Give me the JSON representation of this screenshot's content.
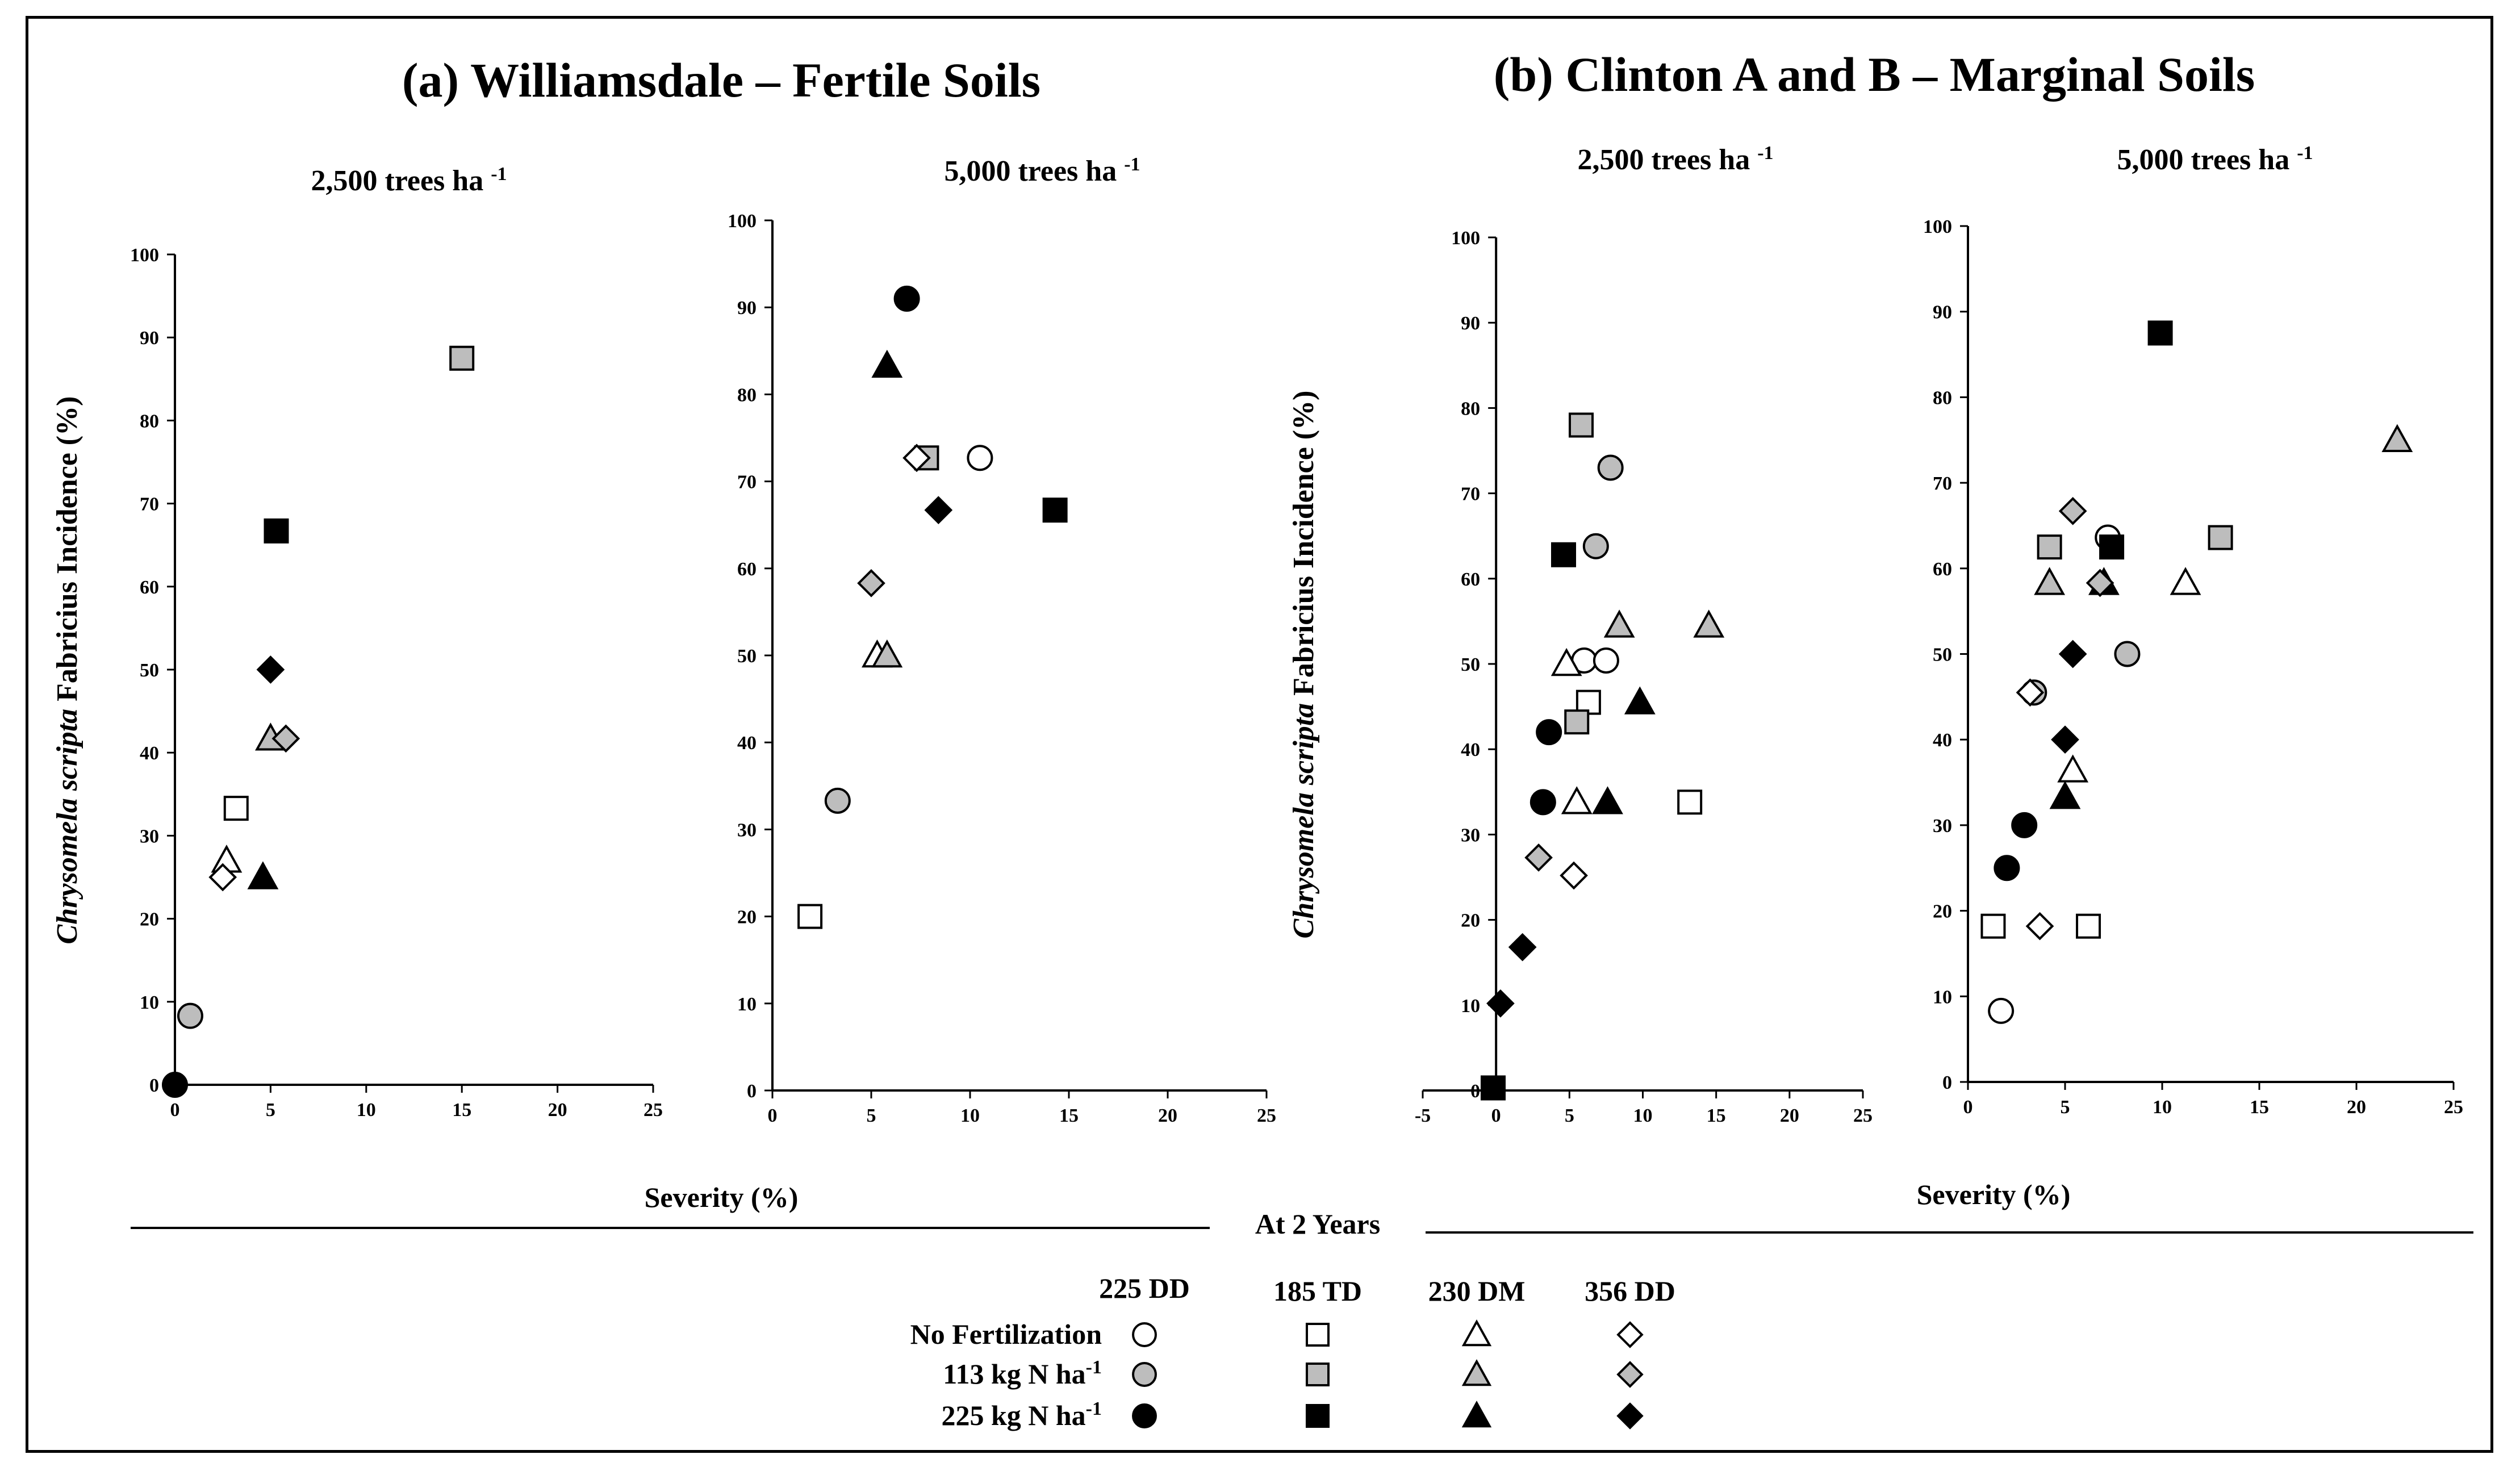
{
  "figure": {
    "title_a": "(a) Williamsdale – Fertile Soils",
    "title_b": "(b) Clinton A and B – Marginal Soils",
    "ylabel_italic": "Chrysomela scripta",
    "ylabel_rest": " Fabricius Incidence (%)",
    "xlabel": "Severity (%)",
    "footer": "At 2 Years"
  },
  "legend": {
    "clones": [
      "225 DD",
      "185 TD",
      "230 DM",
      "356 DD"
    ],
    "treatments": [
      {
        "label": "No Fertilization",
        "fill": "#ffffff"
      },
      {
        "label": "113 kg N ha-1",
        "base": "113 kg N ha",
        "sup": "-1",
        "fill": "#bdbdbd"
      },
      {
        "label": "225 kg N ha-1",
        "base": "225 kg N ha",
        "sup": "-1",
        "fill": "#000000"
      }
    ],
    "shapes": [
      "circle",
      "square",
      "triangle",
      "diamond"
    ]
  },
  "colors": {
    "none": "#ffffff",
    "n113": "#bdbdbd",
    "n225": "#000000"
  },
  "chart_data": [
    {
      "type": "scatter",
      "title": "2,500 trees ha -1",
      "title_base": "2,500 trees ha",
      "title_sup": "-1",
      "xlim": [
        0,
        25
      ],
      "ylim": [
        0,
        100
      ],
      "xticks": [
        0,
        5,
        10,
        15,
        20,
        25
      ],
      "yticks": [
        0,
        10,
        20,
        30,
        40,
        50,
        60,
        70,
        80,
        90,
        100
      ],
      "points": [
        {
          "x": 0,
          "y": 0,
          "shape": "circle",
          "fert": "n225"
        },
        {
          "x": 0.8,
          "y": 8.3,
          "shape": "circle",
          "fert": "n113"
        },
        {
          "x": 3.2,
          "y": 33.3,
          "shape": "square",
          "fert": "none"
        },
        {
          "x": 15,
          "y": 87.5,
          "shape": "square",
          "fert": "n113"
        },
        {
          "x": 5.3,
          "y": 66.7,
          "shape": "square",
          "fert": "n225"
        },
        {
          "x": 2.7,
          "y": 27,
          "shape": "triangle",
          "fert": "none"
        },
        {
          "x": 5,
          "y": 41.7,
          "shape": "triangle",
          "fert": "n113"
        },
        {
          "x": 4.6,
          "y": 25,
          "shape": "triangle",
          "fert": "n225"
        },
        {
          "x": 2.5,
          "y": 25,
          "shape": "diamond",
          "fert": "none"
        },
        {
          "x": 5.8,
          "y": 41.7,
          "shape": "diamond",
          "fert": "n113"
        },
        {
          "x": 5,
          "y": 50,
          "shape": "diamond",
          "fert": "n225"
        }
      ]
    },
    {
      "type": "scatter",
      "title": "5,000 trees ha -1",
      "title_base": "5,000 trees ha",
      "title_sup": "-1",
      "xlim": [
        0,
        25
      ],
      "ylim": [
        0,
        100
      ],
      "xticks": [
        0,
        5,
        10,
        15,
        20,
        25
      ],
      "yticks": [
        0,
        10,
        20,
        30,
        40,
        50,
        60,
        70,
        80,
        90,
        100
      ],
      "points": [
        {
          "x": 10.5,
          "y": 72.7,
          "shape": "circle",
          "fert": "none"
        },
        {
          "x": 3.3,
          "y": 33.3,
          "shape": "circle",
          "fert": "n113"
        },
        {
          "x": 6.8,
          "y": 91,
          "shape": "circle",
          "fert": "n225"
        },
        {
          "x": 1.9,
          "y": 20,
          "shape": "square",
          "fert": "none"
        },
        {
          "x": 7.8,
          "y": 72.7,
          "shape": "square",
          "fert": "n113"
        },
        {
          "x": 14.3,
          "y": 66.7,
          "shape": "square",
          "fert": "n225"
        },
        {
          "x": 5.3,
          "y": 50,
          "shape": "triangle",
          "fert": "none"
        },
        {
          "x": 5.8,
          "y": 50,
          "shape": "triangle",
          "fert": "n113"
        },
        {
          "x": 5.8,
          "y": 83.3,
          "shape": "triangle",
          "fert": "n225"
        },
        {
          "x": 7.3,
          "y": 72.7,
          "shape": "diamond",
          "fert": "none"
        },
        {
          "x": 5,
          "y": 58.3,
          "shape": "diamond",
          "fert": "n113"
        },
        {
          "x": 8.4,
          "y": 66.7,
          "shape": "diamond",
          "fert": "n225"
        }
      ]
    },
    {
      "type": "scatter",
      "title": "2,500 trees ha -1",
      "title_base": "2,500 trees ha",
      "title_sup": "-1",
      "xlim": [
        -5,
        25
      ],
      "ylim": [
        0,
        100
      ],
      "xticks": [
        -5,
        0,
        5,
        10,
        15,
        20,
        25
      ],
      "yticks": [
        0,
        10,
        20,
        30,
        40,
        50,
        60,
        70,
        80,
        90,
        100
      ],
      "points": [
        {
          "x": 6,
          "y": 50.4,
          "shape": "circle",
          "fert": "none"
        },
        {
          "x": 7.5,
          "y": 50.4,
          "shape": "circle",
          "fert": "none"
        },
        {
          "x": 6.8,
          "y": 63.8,
          "shape": "circle",
          "fert": "n113"
        },
        {
          "x": 7.8,
          "y": 73,
          "shape": "circle",
          "fert": "n113"
        },
        {
          "x": 3.2,
          "y": 33.8,
          "shape": "circle",
          "fert": "n225"
        },
        {
          "x": 3.6,
          "y": 42,
          "shape": "circle",
          "fert": "n225"
        },
        {
          "x": 6.3,
          "y": 45.5,
          "shape": "square",
          "fert": "none"
        },
        {
          "x": 13.2,
          "y": 33.8,
          "shape": "square",
          "fert": "none"
        },
        {
          "x": 5.8,
          "y": 78,
          "shape": "square",
          "fert": "n113"
        },
        {
          "x": 5.5,
          "y": 43.2,
          "shape": "square",
          "fert": "n113"
        },
        {
          "x": 4.6,
          "y": 62.8,
          "shape": "square",
          "fert": "n225"
        },
        {
          "x": -0.2,
          "y": 0.3,
          "shape": "square",
          "fert": "n225"
        },
        {
          "x": 4.8,
          "y": 50,
          "shape": "triangle",
          "fert": "none"
        },
        {
          "x": 5.5,
          "y": 33.8,
          "shape": "triangle",
          "fert": "none"
        },
        {
          "x": 8.4,
          "y": 54.5,
          "shape": "triangle",
          "fert": "n113"
        },
        {
          "x": 14.5,
          "y": 54.5,
          "shape": "triangle",
          "fert": "n113"
        },
        {
          "x": 9.8,
          "y": 45.5,
          "shape": "triangle",
          "fert": "n225"
        },
        {
          "x": 7.6,
          "y": 33.8,
          "shape": "triangle",
          "fert": "n225"
        },
        {
          "x": 5.3,
          "y": 25.2,
          "shape": "diamond",
          "fert": "none"
        },
        {
          "x": 2.9,
          "y": 27.3,
          "shape": "diamond",
          "fert": "n113"
        },
        {
          "x": 1.8,
          "y": 16.8,
          "shape": "diamond",
          "fert": "n225"
        },
        {
          "x": 0.3,
          "y": 10.2,
          "shape": "diamond",
          "fert": "n225"
        }
      ]
    },
    {
      "type": "scatter",
      "title": "5,000 trees ha -1",
      "title_base": "5,000 trees ha",
      "title_sup": "-1",
      "xlim": [
        0,
        25
      ],
      "ylim": [
        0,
        100
      ],
      "xticks": [
        0,
        5,
        10,
        15,
        20,
        25
      ],
      "yticks": [
        0,
        10,
        20,
        30,
        40,
        50,
        60,
        70,
        80,
        90,
        100
      ],
      "points": [
        {
          "x": 1.7,
          "y": 8.3,
          "shape": "circle",
          "fert": "none"
        },
        {
          "x": 7.2,
          "y": 63.6,
          "shape": "circle",
          "fert": "none"
        },
        {
          "x": 3.4,
          "y": 45.5,
          "shape": "circle",
          "fert": "n113"
        },
        {
          "x": 8.2,
          "y": 50,
          "shape": "circle",
          "fert": "n113"
        },
        {
          "x": 2,
          "y": 25,
          "shape": "circle",
          "fert": "n225"
        },
        {
          "x": 2.9,
          "y": 30,
          "shape": "circle",
          "fert": "n225"
        },
        {
          "x": 1.3,
          "y": 18.2,
          "shape": "square",
          "fert": "none"
        },
        {
          "x": 6.2,
          "y": 18.2,
          "shape": "square",
          "fert": "none"
        },
        {
          "x": 4.2,
          "y": 62.5,
          "shape": "square",
          "fert": "n113"
        },
        {
          "x": 13,
          "y": 63.6,
          "shape": "square",
          "fert": "n113"
        },
        {
          "x": 7.4,
          "y": 62.5,
          "shape": "square",
          "fert": "n225"
        },
        {
          "x": 9.9,
          "y": 87.5,
          "shape": "square",
          "fert": "n225"
        },
        {
          "x": 5.4,
          "y": 36.4,
          "shape": "triangle",
          "fert": "none"
        },
        {
          "x": 11.2,
          "y": 58.3,
          "shape": "triangle",
          "fert": "none"
        },
        {
          "x": 4.2,
          "y": 58.3,
          "shape": "triangle",
          "fert": "n113"
        },
        {
          "x": 22.1,
          "y": 75,
          "shape": "triangle",
          "fert": "n113"
        },
        {
          "x": 5,
          "y": 33.3,
          "shape": "triangle",
          "fert": "n225"
        },
        {
          "x": 7,
          "y": 58.3,
          "shape": "triangle",
          "fert": "n225"
        },
        {
          "x": 3.7,
          "y": 18.2,
          "shape": "diamond",
          "fert": "none"
        },
        {
          "x": 3.2,
          "y": 45.5,
          "shape": "diamond",
          "fert": "none"
        },
        {
          "x": 5.4,
          "y": 66.7,
          "shape": "diamond",
          "fert": "n113"
        },
        {
          "x": 6.8,
          "y": 58.3,
          "shape": "diamond",
          "fert": "n113"
        },
        {
          "x": 5.4,
          "y": 50,
          "shape": "diamond",
          "fert": "n225"
        },
        {
          "x": 5,
          "y": 40,
          "shape": "diamond",
          "fert": "n225"
        }
      ]
    }
  ]
}
